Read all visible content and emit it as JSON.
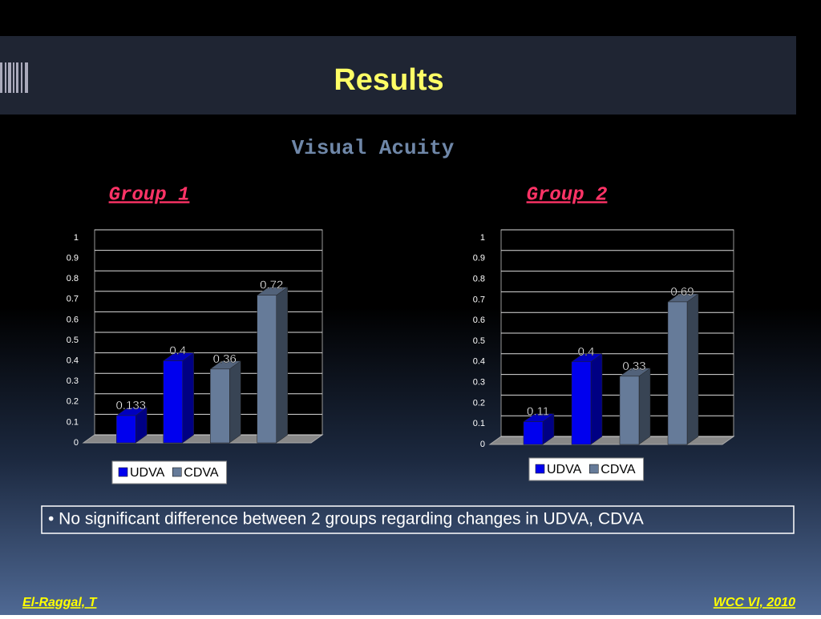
{
  "slide": {
    "title": "Results",
    "subtitle": "Visual Acuity",
    "bullet": "• No significant difference between 2 groups regarding changes in UDVA, CDVA",
    "footer_left": "El-Raggal, T",
    "footer_right": "WCC VI, 2010"
  },
  "chart_data": [
    {
      "type": "bar",
      "title": "Group 1",
      "categories": [
        null,
        null,
        null,
        null
      ],
      "series": [
        {
          "name": "UDVA",
          "color": "#0000ee",
          "values": [
            0.133,
            0.4,
            null,
            null
          ]
        },
        {
          "name": "CDVA",
          "color": "#667b99",
          "values": [
            null,
            null,
            0.36,
            0.72
          ]
        }
      ],
      "ylim": [
        0,
        1
      ],
      "yticks": [
        0,
        0.1,
        0.2,
        0.3,
        0.4,
        0.5,
        0.6,
        0.7,
        0.8,
        0.9,
        1
      ],
      "grid": true,
      "legend": "bottom"
    },
    {
      "type": "bar",
      "title": "Group 2",
      "categories": [
        null,
        null,
        null,
        null
      ],
      "series": [
        {
          "name": "UDVA",
          "color": "#0000ee",
          "values": [
            0.11,
            0.4,
            null,
            null
          ]
        },
        {
          "name": "CDVA",
          "color": "#667b99",
          "values": [
            null,
            null,
            0.33,
            0.69
          ]
        }
      ],
      "ylim": [
        0,
        1
      ],
      "yticks": [
        0,
        0.1,
        0.2,
        0.3,
        0.4,
        0.5,
        0.6,
        0.7,
        0.8,
        0.9,
        1
      ],
      "grid": true,
      "legend": "bottom"
    }
  ]
}
